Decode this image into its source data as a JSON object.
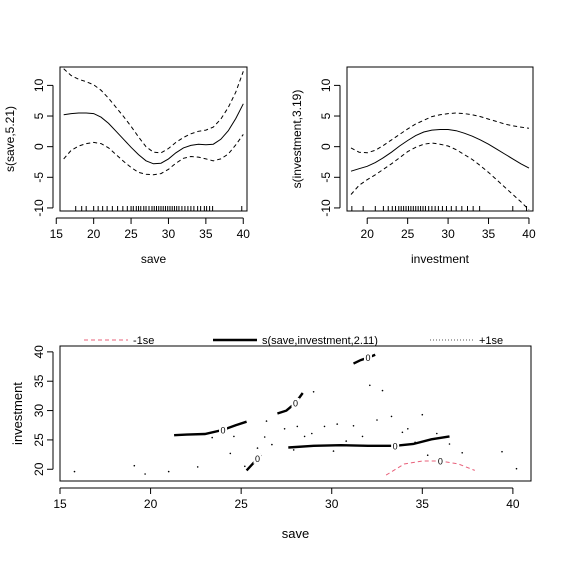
{
  "chart_data": [
    {
      "type": "line",
      "xlabel": "save",
      "ylabel": "s(save,5.21)",
      "xlim": [
        15.5,
        40.5
      ],
      "ylim": [
        -10.5,
        13
      ],
      "xticks": [
        "15",
        "20",
        "25",
        "30",
        "35",
        "40"
      ],
      "yticks": [
        "-10",
        "-5",
        "0",
        "5",
        "10"
      ],
      "rug": [
        17.6,
        18.4,
        19.0,
        20.0,
        20.6,
        21.2,
        21.8,
        22.5,
        23.2,
        23.9,
        24.5,
        25.0,
        25.3,
        25.7,
        26.0,
        26.3,
        26.7,
        27.0,
        27.4,
        27.8,
        28.1,
        28.4,
        28.7,
        29.0,
        29.3,
        29.6,
        29.9,
        30.2,
        30.5,
        30.8,
        31.1,
        31.4,
        31.8,
        32.2,
        32.6,
        33.0,
        33.4,
        33.9,
        34.3,
        34.8,
        35.1,
        35.5,
        35.9,
        39.8
      ],
      "series": [
        {
          "line": "solid",
          "x": [
            16,
            17,
            18,
            19,
            20,
            21,
            22,
            23,
            24,
            25,
            26,
            27,
            28,
            29,
            30,
            31,
            32,
            33,
            34,
            35,
            36,
            37,
            38,
            39,
            40
          ],
          "y": [
            5.2,
            5.4,
            5.5,
            5.5,
            5.4,
            4.8,
            3.8,
            2.5,
            1.2,
            -0.1,
            -1.3,
            -2.3,
            -2.8,
            -2.7,
            -2.0,
            -1.0,
            -0.2,
            0.2,
            0.4,
            0.3,
            0.4,
            1.2,
            2.6,
            4.6,
            7.0
          ]
        },
        {
          "line": "dashed",
          "x": [
            16,
            17,
            18,
            19,
            20,
            21,
            22,
            23,
            24,
            25,
            26,
            27,
            28,
            29,
            30,
            31,
            32,
            33,
            34,
            35,
            36,
            37,
            38,
            39,
            40
          ],
          "y": [
            12.7,
            11.6,
            11.0,
            10.6,
            10.1,
            9.2,
            7.9,
            6.4,
            4.9,
            3.3,
            1.6,
            0.0,
            -0.9,
            -1.0,
            -0.3,
            0.7,
            1.5,
            2.1,
            2.5,
            2.7,
            3.2,
            4.5,
            6.4,
            8.9,
            12.3
          ]
        },
        {
          "line": "dashed",
          "x": [
            16,
            17,
            18,
            19,
            20,
            21,
            22,
            23,
            24,
            25,
            26,
            27,
            28,
            29,
            30,
            31,
            32,
            33,
            34,
            35,
            36,
            37,
            38,
            39,
            40
          ],
          "y": [
            -2.0,
            -0.6,
            0.1,
            0.5,
            0.7,
            0.5,
            -0.2,
            -1.3,
            -2.4,
            -3.4,
            -4.2,
            -4.5,
            -4.6,
            -4.4,
            -3.7,
            -2.7,
            -1.9,
            -1.6,
            -1.7,
            -2.0,
            -2.3,
            -2.0,
            -1.2,
            0.3,
            2.0
          ]
        }
      ]
    },
    {
      "type": "line",
      "xlabel": "investment",
      "ylabel": "s(investment,3.19)",
      "xlim": [
        17.5,
        40.5
      ],
      "ylim": [
        -10.5,
        13
      ],
      "xticks": [
        "20",
        "25",
        "30",
        "35",
        "40"
      ],
      "yticks": [
        "-10",
        "-5",
        "0",
        "5",
        "10"
      ],
      "rug": [
        18.1,
        19.5,
        21.0,
        22.0,
        22.6,
        23.1,
        23.5,
        23.9,
        24.2,
        24.5,
        24.8,
        25.1,
        25.4,
        25.7,
        26.0,
        26.3,
        26.6,
        26.9,
        27.2,
        27.6,
        28.0,
        28.4,
        28.8,
        29.3,
        29.8,
        30.4,
        31.0,
        31.7,
        32.4,
        33.1,
        33.9,
        38.0,
        39.7
      ],
      "series": [
        {
          "line": "solid",
          "x": [
            18,
            19,
            20,
            21,
            22,
            23,
            24,
            25,
            26,
            27,
            28,
            29,
            30,
            31,
            32,
            33,
            34,
            35,
            36,
            37,
            38,
            39,
            40
          ],
          "y": [
            -4.0,
            -3.6,
            -3.2,
            -2.6,
            -1.8,
            -0.9,
            0.1,
            1.0,
            1.8,
            2.4,
            2.7,
            2.8,
            2.8,
            2.6,
            2.2,
            1.7,
            1.1,
            0.4,
            -0.4,
            -1.2,
            -2.0,
            -2.8,
            -3.5
          ]
        },
        {
          "line": "dashed",
          "x": [
            18,
            19,
            20,
            21,
            22,
            23,
            24,
            25,
            26,
            27,
            28,
            29,
            30,
            31,
            32,
            33,
            34,
            35,
            36,
            37,
            38,
            39,
            40
          ],
          "y": [
            -0.2,
            -0.9,
            -1.0,
            -0.6,
            0.2,
            1.1,
            2.0,
            2.9,
            3.7,
            4.3,
            4.9,
            5.2,
            5.4,
            5.5,
            5.4,
            5.2,
            4.9,
            4.5,
            4.1,
            3.7,
            3.4,
            3.2,
            3.0
          ]
        },
        {
          "line": "dashed",
          "x": [
            18,
            19,
            20,
            21,
            22,
            23,
            24,
            25,
            26,
            27,
            28,
            29,
            30,
            31,
            32,
            33,
            34,
            35,
            36,
            37,
            38,
            39,
            40
          ],
          "y": [
            -7.8,
            -6.3,
            -5.4,
            -4.6,
            -3.7,
            -2.8,
            -1.8,
            -0.8,
            -0.1,
            0.4,
            0.6,
            0.4,
            0.1,
            -0.5,
            -1.3,
            -2.1,
            -3.1,
            -4.2,
            -5.4,
            -6.6,
            -7.8,
            -9.0,
            -10.3
          ]
        }
      ]
    },
    {
      "type": "contour",
      "xlabel": "save",
      "ylabel": "investment",
      "xlim": [
        15,
        41
      ],
      "ylim": [
        18,
        41
      ],
      "xticks": [
        "15",
        "20",
        "25",
        "30",
        "35",
        "40"
      ],
      "yticks": [
        "20",
        "25",
        "30",
        "35",
        "40"
      ],
      "legend": [
        "-1se",
        "s(save,investment,2.11)",
        "+1se"
      ],
      "points": [
        [
          15.8,
          19.6
        ],
        [
          19.1,
          20.6
        ],
        [
          19.7,
          19.2
        ],
        [
          21.0,
          19.6
        ],
        [
          22.6,
          20.4
        ],
        [
          23.4,
          25.4
        ],
        [
          24.4,
          22.7
        ],
        [
          24.6,
          25.6
        ],
        [
          25.2,
          20.5
        ],
        [
          25.9,
          23.6
        ],
        [
          26.3,
          25.5
        ],
        [
          26.7,
          24.2
        ],
        [
          27.4,
          26.9
        ],
        [
          27.9,
          23.3
        ],
        [
          28.1,
          27.3
        ],
        [
          28.5,
          25.6
        ],
        [
          28.9,
          26.1
        ],
        [
          29.6,
          27.3
        ],
        [
          30.1,
          23.1
        ],
        [
          30.3,
          27.7
        ],
        [
          30.8,
          24.8
        ],
        [
          31.2,
          27.4
        ],
        [
          31.7,
          25.6
        ],
        [
          32.1,
          34.3
        ],
        [
          32.5,
          28.4
        ],
        [
          32.8,
          33.4
        ],
        [
          33.3,
          29.0
        ],
        [
          33.9,
          26.3
        ],
        [
          34.2,
          26.9
        ],
        [
          34.6,
          24.6
        ],
        [
          35.0,
          29.3
        ],
        [
          35.3,
          22.4
        ],
        [
          35.8,
          26.1
        ],
        [
          36.5,
          24.3
        ],
        [
          37.2,
          22.8
        ],
        [
          39.4,
          23.0
        ],
        [
          40.2,
          20.1
        ],
        [
          29.0,
          33.2
        ],
        [
          26.4,
          28.2
        ]
      ],
      "contours": [
        {
          "style": "solid",
          "label": "0",
          "x": [
            21.3,
            22.0,
            23.0,
            24.0,
            24.7,
            25.3
          ],
          "y": [
            25.8,
            25.9,
            26.0,
            26.7,
            27.5,
            28.1
          ]
        },
        {
          "style": "solid",
          "label": "0",
          "x": [
            25.3,
            25.6,
            25.9,
            26.1
          ],
          "y": [
            19.8,
            20.8,
            21.8,
            22.5
          ]
        },
        {
          "style": "solid",
          "label": "0",
          "x": [
            27.0,
            27.5,
            28.0,
            28.4
          ],
          "y": [
            29.5,
            30.0,
            31.3,
            33.0
          ]
        },
        {
          "style": "solid",
          "label": "0",
          "x": [
            27.6,
            29.0,
            30.5,
            32.0,
            33.5,
            34.5,
            35.5,
            36.5
          ],
          "y": [
            23.7,
            24.0,
            24.1,
            24.0,
            24.0,
            24.3,
            25.1,
            25.6
          ]
        },
        {
          "style": "solid",
          "label": "0",
          "x": [
            31.2,
            31.6,
            32.0,
            32.4
          ],
          "y": [
            38.0,
            38.6,
            39.0,
            39.5
          ]
        },
        {
          "style": "dashed",
          "label": "0",
          "x": [
            33.0,
            34.0,
            35.0,
            36.0,
            37.0,
            37.9
          ],
          "y": [
            19.0,
            20.9,
            21.4,
            21.4,
            20.9,
            19.8
          ]
        }
      ]
    }
  ]
}
